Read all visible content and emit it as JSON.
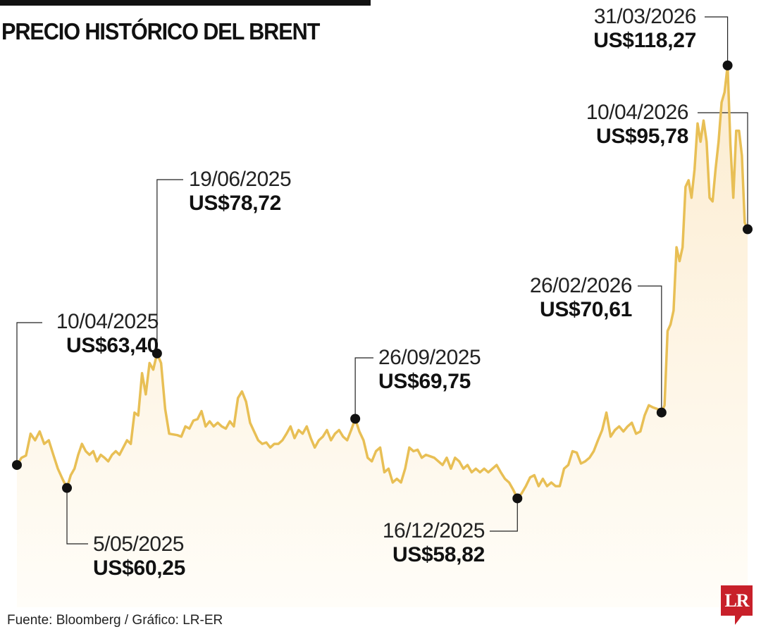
{
  "title": "PRECIO HISTÓRICO DEL BRENT",
  "source": "Fuente: Bloomberg / Gráfico: LR-ER",
  "logo": "LR",
  "colors": {
    "line": "#e8bf55",
    "fill": "#fdf0d8",
    "marker": "#111111",
    "logo": "#c8202a"
  },
  "chart_data": {
    "type": "area",
    "title": "PRECIO HISTÓRICO DEL BRENT",
    "xlabel": "",
    "ylabel": "US$",
    "xlim": [
      "10/04/2025",
      "10/04/2026"
    ],
    "ylim": [
      40,
      120
    ],
    "grid": false,
    "values": [
      63.4,
      64.4,
      64.7,
      67.7,
      66.8,
      68.0,
      66.3,
      66.8,
      64.8,
      62.9,
      61.5,
      60.25,
      62.0,
      62.9,
      64.8,
      66.3,
      65.3,
      64.8,
      65.3,
      63.9,
      64.8,
      64.4,
      63.9,
      64.8,
      65.3,
      64.8,
      65.8,
      66.8,
      66.3,
      70.6,
      70.2,
      76.0,
      73.1,
      77.4,
      76.5,
      78.72,
      77.4,
      71.1,
      67.7,
      67.6,
      67.5,
      67.3,
      68.7,
      68.4,
      69.5,
      69.7,
      70.8,
      68.7,
      69.4,
      68.7,
      69.2,
      68.7,
      68.4,
      69.4,
      68.7,
      72.6,
      73.5,
      72.1,
      69.2,
      68.0,
      66.8,
      66.3,
      66.5,
      65.8,
      66.3,
      66.3,
      66.8,
      67.7,
      68.7,
      67.1,
      68.2,
      67.7,
      68.7,
      67.1,
      65.8,
      66.8,
      67.3,
      68.2,
      66.8,
      67.7,
      68.2,
      67.3,
      66.8,
      68.2,
      69.75,
      68.0,
      66.8,
      64.4,
      63.9,
      65.3,
      65.8,
      62.4,
      62.9,
      61.0,
      61.5,
      61.0,
      62.9,
      65.8,
      65.3,
      65.5,
      64.4,
      64.8,
      64.6,
      64.4,
      63.9,
      63.4,
      64.4,
      62.9,
      64.4,
      63.9,
      62.9,
      63.4,
      62.4,
      62.9,
      62.4,
      62.9,
      62.4,
      62.9,
      63.4,
      62.4,
      61.5,
      61.0,
      60.0,
      58.82,
      59.5,
      60.5,
      61.7,
      62.0,
      60.5,
      61.5,
      60.5,
      61.0,
      60.5,
      60.5,
      62.9,
      63.4,
      65.3,
      65.1,
      63.6,
      63.9,
      64.4,
      65.3,
      66.8,
      68.2,
      70.6,
      67.3,
      68.2,
      68.7,
      68.0,
      68.7,
      69.2,
      67.7,
      68.0,
      70.2,
      71.6,
      71.3,
      71.1,
      70.61,
      71.6,
      81.8,
      82.7,
      84.6,
      93.3,
      91.4,
      93.3,
      101.6,
      102.5,
      100.1,
      104.0,
      110.3,
      107.8,
      110.7,
      107.8,
      100.1,
      99.6,
      104.0,
      107.8,
      113.2,
      114.6,
      118.27,
      107.4,
      100.1,
      109.3,
      109.3,
      105.9,
      96.7,
      95.78
    ],
    "annotations": [
      {
        "index": 0,
        "date": "10/04/2025",
        "value": 63.4,
        "label": "US$63,40"
      },
      {
        "index": 11,
        "date": "5/05/2025",
        "value": 60.25,
        "label": "US$60,25"
      },
      {
        "index": 35,
        "date": "19/06/2025",
        "value": 78.72,
        "label": "US$78,72"
      },
      {
        "index": 84,
        "date": "26/09/2025",
        "value": 69.75,
        "label": "US$69,75"
      },
      {
        "index": 123,
        "date": "16/12/2025",
        "value": 58.82,
        "label": "US$58,82"
      },
      {
        "index": 157,
        "date": "26/02/2026",
        "value": 70.61,
        "label": "US$70,61"
      },
      {
        "index": 179,
        "date": "31/03/2026",
        "value": 118.27,
        "label": "US$118,27"
      },
      {
        "index": 186,
        "date": "10/04/2026",
        "value": 95.78,
        "label": "US$95,78"
      }
    ]
  }
}
